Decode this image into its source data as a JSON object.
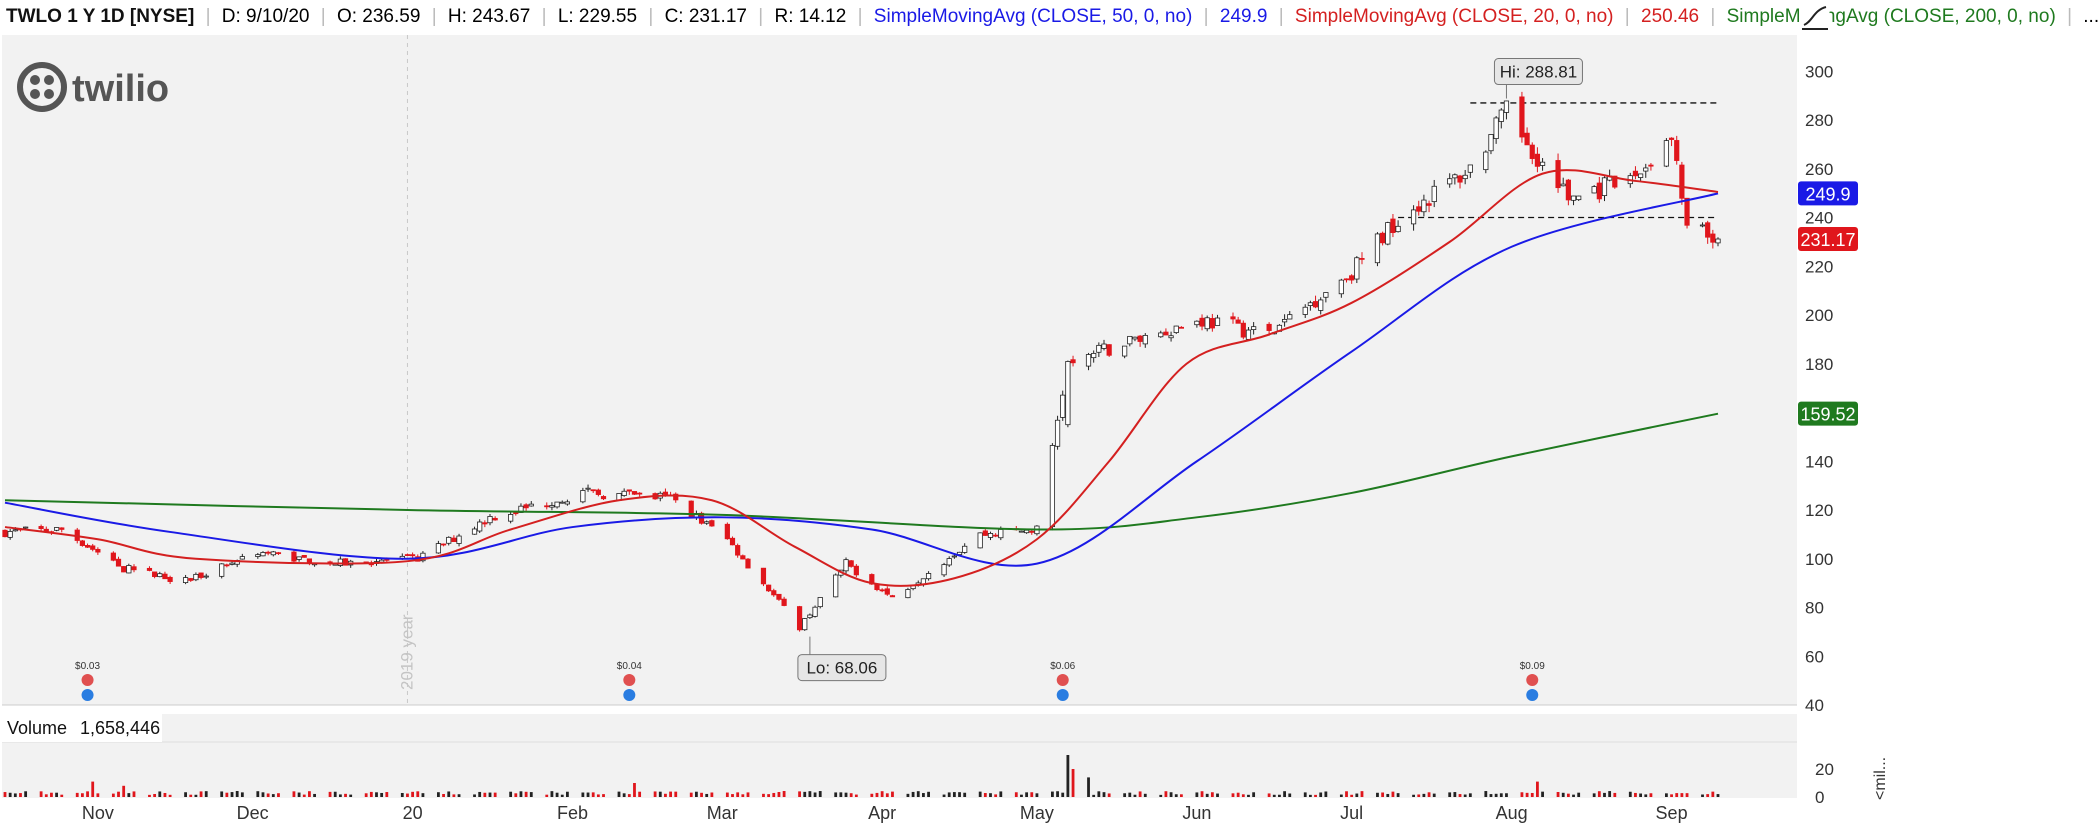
{
  "header": {
    "symbol": "TWLO 1 Y 1D [NYSE]",
    "date": "D: 9/10/20",
    "open": "O: 236.59",
    "high": "H: 243.67",
    "low": "L: 229.55",
    "close": "C: 231.17",
    "range": "R: 14.12",
    "sma50_label": "SimpleMovingAvg (CLOSE, 50, 0, no)",
    "sma50_value": "249.9",
    "sma20_label": "SimpleMovingAvg (CLOSE, 20, 0, no)",
    "sma20_value": "250.46",
    "sma200_label": "SimpleMovingAvg (CLOSE, 200, 0, no)",
    "more": "..."
  },
  "logo_text": "twilio",
  "colors": {
    "up": "#ffffff",
    "down": "#e0161c",
    "sma50": "#1a1ae6",
    "sma20": "#d42020",
    "sma200": "#1f7a1f",
    "panel_bg": "#f2f2f2"
  },
  "chart_data": {
    "type": "candlestick",
    "price_axis": {
      "ticks": [
        40,
        60,
        80,
        100,
        120,
        140,
        160,
        180,
        200,
        220,
        240,
        260,
        280,
        300
      ]
    },
    "volume_axis": {
      "ticks": [
        0,
        20
      ],
      "label": "<mil..."
    },
    "x_ticks": [
      {
        "label": "Nov",
        "date": "2019-11-01"
      },
      {
        "label": "Dec",
        "date": "2019-12-01"
      },
      {
        "label": "20",
        "date": "2020-01-01"
      },
      {
        "label": "Feb",
        "date": "2020-02-01"
      },
      {
        "label": "Mar",
        "date": "2020-03-01"
      },
      {
        "label": "Apr",
        "date": "2020-04-01"
      },
      {
        "label": "May",
        "date": "2020-05-01"
      },
      {
        "label": "Jun",
        "date": "2020-06-01"
      },
      {
        "label": "Jul",
        "date": "2020-07-01"
      },
      {
        "label": "Aug",
        "date": "2020-08-01"
      },
      {
        "label": "Sep",
        "date": "2020-09-01"
      }
    ],
    "year_marker": {
      "label": "2019 year",
      "date": "2019-12-31"
    },
    "price_keypoints": [
      {
        "date": "2019-10-14",
        "price": 111
      },
      {
        "date": "2019-10-25",
        "price": 112
      },
      {
        "date": "2019-11-06",
        "price": 96
      },
      {
        "date": "2019-11-18",
        "price": 91
      },
      {
        "date": "2019-12-02",
        "price": 103
      },
      {
        "date": "2019-12-16",
        "price": 98
      },
      {
        "date": "2020-01-02",
        "price": 100
      },
      {
        "date": "2020-01-16",
        "price": 117
      },
      {
        "date": "2020-02-03",
        "price": 127
      },
      {
        "date": "2020-02-20",
        "price": 125
      },
      {
        "date": "2020-03-02",
        "price": 108
      },
      {
        "date": "2020-03-16",
        "price": 72
      },
      {
        "date": "2020-03-25",
        "price": 98
      },
      {
        "date": "2020-04-03",
        "price": 84
      },
      {
        "date": "2020-04-20",
        "price": 110
      },
      {
        "date": "2020-05-01",
        "price": 112
      },
      {
        "date": "2020-05-07",
        "price": 180
      },
      {
        "date": "2020-05-20",
        "price": 190
      },
      {
        "date": "2020-06-02",
        "price": 198
      },
      {
        "date": "2020-06-15",
        "price": 192
      },
      {
        "date": "2020-07-01",
        "price": 218
      },
      {
        "date": "2020-07-10",
        "price": 240
      },
      {
        "date": "2020-07-24",
        "price": 260
      },
      {
        "date": "2020-07-31",
        "price": 283
      },
      {
        "date": "2020-08-12",
        "price": 248
      },
      {
        "date": "2020-08-24",
        "price": 255
      },
      {
        "date": "2020-09-01",
        "price": 272
      },
      {
        "date": "2020-09-04",
        "price": 235
      },
      {
        "date": "2020-09-10",
        "price": 231.17
      }
    ],
    "sma20": [
      {
        "date": "2019-10-14",
        "price": 113
      },
      {
        "date": "2019-11-01",
        "price": 108
      },
      {
        "date": "2019-11-20",
        "price": 100
      },
      {
        "date": "2019-12-31",
        "price": 99
      },
      {
        "date": "2020-01-20",
        "price": 112
      },
      {
        "date": "2020-02-10",
        "price": 124
      },
      {
        "date": "2020-02-28",
        "price": 124
      },
      {
        "date": "2020-03-15",
        "price": 105
      },
      {
        "date": "2020-03-30",
        "price": 90
      },
      {
        "date": "2020-04-15",
        "price": 92
      },
      {
        "date": "2020-05-01",
        "price": 108
      },
      {
        "date": "2020-05-15",
        "price": 140
      },
      {
        "date": "2020-05-30",
        "price": 180
      },
      {
        "date": "2020-06-15",
        "price": 192
      },
      {
        "date": "2020-07-01",
        "price": 205
      },
      {
        "date": "2020-07-20",
        "price": 230
      },
      {
        "date": "2020-08-07",
        "price": 258
      },
      {
        "date": "2020-08-25",
        "price": 255
      },
      {
        "date": "2020-09-10",
        "price": 250.46
      }
    ],
    "sma50": [
      {
        "date": "2019-10-14",
        "price": 123
      },
      {
        "date": "2019-11-15",
        "price": 111
      },
      {
        "date": "2019-12-31",
        "price": 100
      },
      {
        "date": "2020-02-01",
        "price": 113
      },
      {
        "date": "2020-03-01",
        "price": 117
      },
      {
        "date": "2020-03-30",
        "price": 112
      },
      {
        "date": "2020-05-01",
        "price": 98
      },
      {
        "date": "2020-06-01",
        "price": 140
      },
      {
        "date": "2020-07-01",
        "price": 185
      },
      {
        "date": "2020-08-01",
        "price": 228
      },
      {
        "date": "2020-09-10",
        "price": 249.9
      }
    ],
    "sma200": [
      {
        "date": "2019-10-14",
        "price": 124
      },
      {
        "date": "2019-12-31",
        "price": 120
      },
      {
        "date": "2020-03-01",
        "price": 118
      },
      {
        "date": "2020-05-01",
        "price": 112
      },
      {
        "date": "2020-06-01",
        "price": 117
      },
      {
        "date": "2020-07-01",
        "price": 127
      },
      {
        "date": "2020-08-01",
        "price": 142
      },
      {
        "date": "2020-09-10",
        "price": 159.52
      }
    ],
    "price_labels": [
      {
        "text": "249.9",
        "price": 249.9,
        "color": "#1a1ae6"
      },
      {
        "text": "231.17",
        "price": 231.17,
        "color": "#e0161c"
      },
      {
        "text": "159.52",
        "price": 159.52,
        "color": "#1f7a1f"
      }
    ],
    "annotations": [
      {
        "text": "Hi: 288.81",
        "date": "2020-07-31",
        "price": 288.81
      },
      {
        "text": "Lo: 68.06",
        "date": "2020-03-18",
        "price": 68.06
      }
    ],
    "resistance_line": {
      "price": 287,
      "from": "2020-07-24",
      "to": "2020-09-10"
    },
    "support_line": {
      "price": 240,
      "from": "2020-07-10",
      "to": "2020-09-10"
    },
    "dividends": [
      {
        "text": "$0.03",
        "date": "2019-10-30"
      },
      {
        "text": "$0.04",
        "date": "2020-02-12"
      },
      {
        "text": "$0.06",
        "date": "2020-05-06"
      },
      {
        "text": "$0.09",
        "date": "2020-08-05"
      }
    ],
    "volume_label": "Volume",
    "volume_value": "1,658,446",
    "volume_spikes": [
      {
        "date": "2020-05-07",
        "value": 30
      },
      {
        "date": "2020-05-08",
        "value": 20
      },
      {
        "date": "2020-05-11",
        "value": 14
      },
      {
        "date": "2019-10-31",
        "value": 11
      },
      {
        "date": "2019-11-06",
        "value": 8
      },
      {
        "date": "2020-02-13",
        "value": 10
      },
      {
        "date": "2020-08-06",
        "value": 11
      }
    ]
  }
}
